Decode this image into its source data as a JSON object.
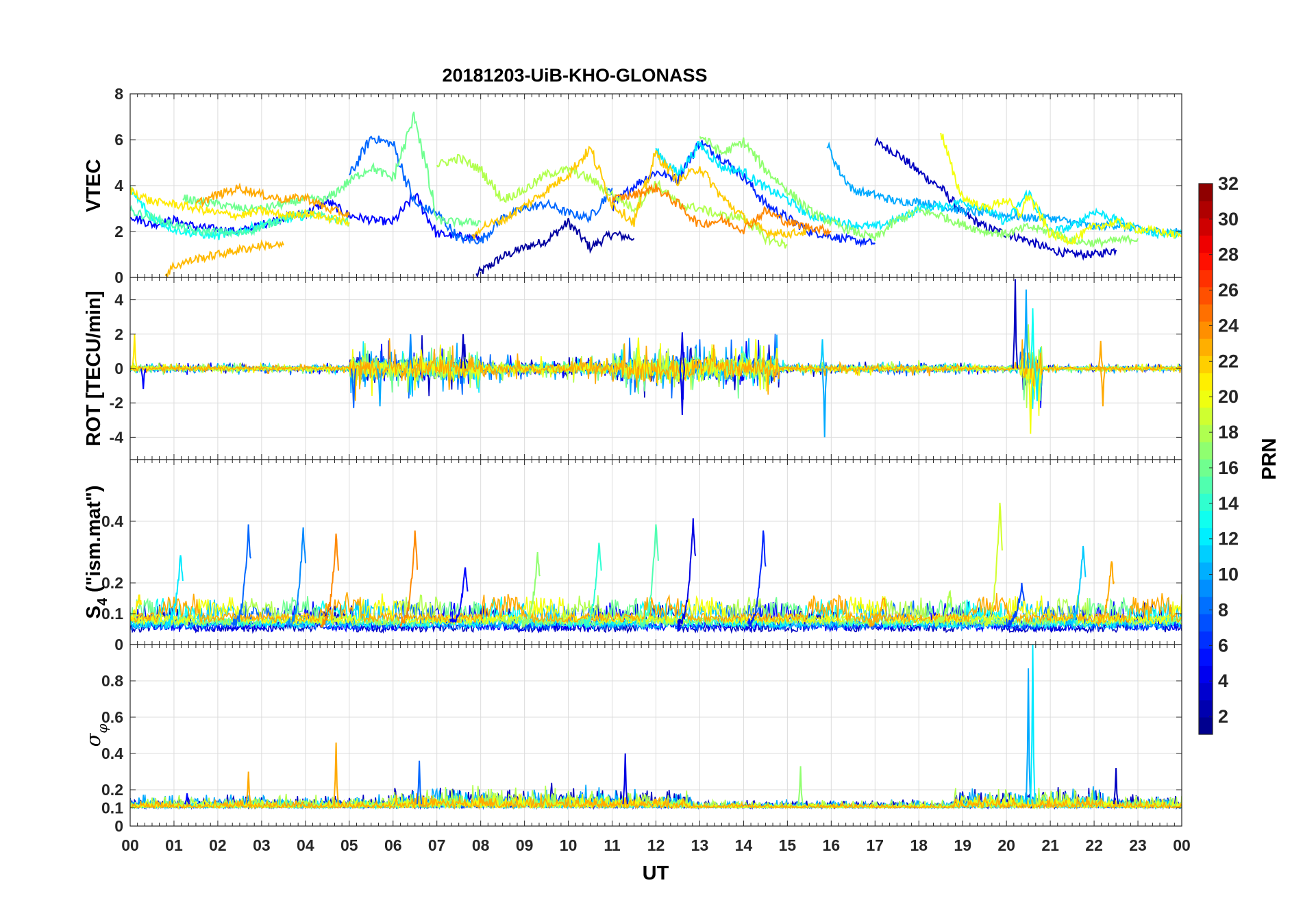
{
  "chart_data": {
    "type": "line",
    "title": "20181203-UiB-KHO-GLONASS",
    "xlabel": "UT",
    "x_tick_labels": [
      "00",
      "01",
      "02",
      "03",
      "04",
      "05",
      "06",
      "07",
      "08",
      "09",
      "10",
      "11",
      "12",
      "13",
      "14",
      "15",
      "16",
      "17",
      "18",
      "19",
      "20",
      "21",
      "22",
      "23",
      "00"
    ],
    "xlim": [
      0,
      24
    ],
    "grid": true,
    "colorbar": {
      "label": "PRN",
      "colormap": "jet",
      "range": [
        1,
        32
      ],
      "tick_labels": [
        "2",
        "4",
        "6",
        "8",
        "10",
        "12",
        "14",
        "16",
        "18",
        "20",
        "22",
        "24",
        "26",
        "28",
        "30",
        "32"
      ]
    },
    "panels": [
      {
        "name": "vtec",
        "ylabel": "VTEC",
        "ylim": [
          0,
          8
        ],
        "y_tick_labels": [
          "0",
          "2",
          "4",
          "6",
          "8"
        ],
        "series": [
          {
            "prn": 2,
            "x": [
              7.9,
              8.5,
              9.0,
              9.5,
              10.0,
              10.5,
              11.0,
              11.5
            ],
            "y": [
              0.1,
              0.9,
              1.3,
              1.6,
              2.4,
              1.3,
              1.9,
              1.7
            ]
          },
          {
            "prn": 3,
            "x": [
              17.0,
              17.5,
              18.0,
              18.5,
              19.0,
              19.5,
              20.0,
              20.5,
              21.0,
              21.5,
              22.0,
              22.5
            ],
            "y": [
              5.9,
              5.4,
              4.6,
              3.9,
              2.8,
              2.2,
              1.9,
              1.6,
              1.2,
              1.0,
              1.0,
              1.2
            ]
          },
          {
            "prn": 5,
            "x": [
              0.0,
              0.5,
              1.0,
              1.5,
              2.0,
              2.5,
              3.0,
              3.5,
              4.0,
              4.5,
              5.0,
              5.5,
              6.0,
              6.5,
              7.0,
              7.5,
              8.0
            ],
            "y": [
              2.7,
              2.3,
              2.5,
              2.2,
              2.1,
              2.0,
              2.3,
              2.6,
              2.8,
              3.3,
              2.7,
              2.5,
              2.4,
              3.6,
              1.9,
              1.8,
              1.7
            ]
          },
          {
            "prn": 6,
            "x": [
              11.0,
              11.5,
              12.0,
              12.5,
              13.0,
              13.5,
              14.0,
              14.5,
              15.0,
              15.5,
              16.0,
              16.5,
              17.0
            ],
            "y": [
              3.1,
              4.0,
              4.6,
              4.3,
              5.9,
              5.2,
              4.4,
              3.2,
              2.6,
              2.0,
              1.8,
              1.6,
              1.5
            ]
          },
          {
            "prn": 8,
            "x": [
              5.0,
              5.5,
              6.0,
              6.5,
              7.0,
              7.5,
              8.0,
              8.5,
              9.0,
              9.5,
              10.0,
              10.5,
              11.0
            ],
            "y": [
              4.4,
              6.1,
              5.8,
              3.2,
              2.8,
              1.7,
              1.6,
              2.6,
              3.0,
              3.2,
              2.8,
              2.6,
              3.9
            ]
          },
          {
            "prn": 10,
            "x": [
              15.9,
              16.2,
              16.5,
              17.0,
              17.5,
              18.0,
              18.5,
              19.0,
              19.5,
              20.0,
              20.5,
              21.0,
              21.5,
              22.0,
              22.5,
              23.0,
              23.5,
              24.0
            ],
            "y": [
              5.8,
              4.6,
              3.8,
              3.6,
              3.3,
              3.3,
              3.1,
              2.9,
              2.8,
              2.7,
              2.6,
              2.6,
              2.4,
              2.2,
              2.3,
              2.1,
              2.0,
              2.0
            ]
          },
          {
            "prn": 12,
            "x": [
              12.0,
              12.5,
              13.0,
              13.5,
              14.0,
              14.5,
              15.0,
              15.5,
              16.0,
              16.5,
              17.0,
              17.5,
              18.0,
              18.5,
              19.0,
              19.5,
              20.0,
              20.5,
              21.0,
              21.5,
              22.0,
              22.5,
              23.0,
              23.5,
              24.0
            ],
            "y": [
              5.5,
              4.5,
              5.8,
              4.8,
              4.6,
              3.9,
              3.4,
              2.7,
              2.5,
              2.3,
              2.2,
              2.5,
              3.0,
              3.1,
              3.3,
              3.0,
              2.4,
              3.7,
              2.0,
              2.2,
              2.9,
              2.5,
              2.1,
              1.9,
              1.9
            ]
          },
          {
            "prn": 13,
            "x": [
              0.0,
              0.5,
              1.0,
              1.5,
              2.0,
              2.5,
              3.0,
              3.5,
              4.0
            ],
            "y": [
              3.8,
              2.6,
              2.1,
              1.9,
              1.8,
              2.0,
              2.3,
              2.5,
              2.7
            ]
          },
          {
            "prn": 15,
            "x": [
              0.0,
              0.5,
              1.0,
              1.5,
              2.0,
              2.5,
              3.0,
              3.5,
              4.0,
              4.5,
              5.0
            ],
            "y": [
              2.9,
              2.6,
              2.3,
              2.0,
              2.0,
              1.9,
              2.2,
              2.6,
              2.8,
              2.6,
              2.4
            ]
          },
          {
            "prn": 16,
            "x": [
              1.2,
              1.5,
              2.0,
              2.5,
              3.0,
              3.5,
              4.0,
              4.5,
              5.0,
              5.5,
              6.0,
              6.5,
              7.0,
              7.5,
              8.0
            ],
            "y": [
              3.5,
              3.3,
              3.2,
              3.0,
              3.0,
              3.2,
              3.4,
              3.4,
              4.2,
              4.8,
              4.3,
              7.1,
              2.5,
              2.4,
              2.4
            ]
          },
          {
            "prn": 17,
            "x": [
              13.0,
              13.5,
              14.0,
              14.5,
              15.0,
              15.5,
              16.0,
              16.5,
              17.0,
              17.5,
              18.0,
              18.5,
              19.0,
              19.5,
              20.0,
              20.5,
              21.0,
              21.5,
              22.0,
              22.5,
              23.0
            ],
            "y": [
              6.2,
              5.4,
              5.9,
              4.7,
              3.8,
              2.9,
              2.4,
              2.0,
              1.7,
              2.5,
              2.9,
              2.7,
              2.3,
              2.0,
              1.9,
              2.2,
              2.0,
              1.6,
              1.5,
              1.6,
              1.7
            ]
          },
          {
            "prn": 18,
            "x": [
              7.0,
              7.5,
              8.0,
              8.5,
              9.0,
              9.5,
              10.0,
              10.5,
              11.0,
              11.5,
              12.0,
              12.5,
              13.0,
              13.5,
              14.0,
              14.5,
              15.0
            ],
            "y": [
              4.9,
              5.2,
              4.7,
              3.4,
              3.8,
              4.5,
              4.7,
              4.3,
              3.6,
              3.0,
              4.1,
              3.2,
              3.0,
              2.7,
              2.6,
              1.7,
              1.4
            ]
          },
          {
            "prn": 20,
            "x": [
              18.5,
              18.8,
              19.0,
              19.5,
              20.0,
              20.3,
              20.5,
              21.0,
              21.5,
              22.0,
              22.5,
              23.0,
              23.5,
              24.0
            ],
            "y": [
              6.4,
              4.4,
              3.5,
              3.0,
              3.4,
              2.7,
              3.6,
              1.9,
              1.6,
              2.2,
              2.4,
              2.1,
              2.0,
              1.8
            ]
          },
          {
            "prn": 21,
            "x": [
              0.0,
              0.5,
              1.0,
              1.5,
              2.0,
              2.5,
              3.0,
              3.5,
              4.0,
              4.5,
              5.0
            ],
            "y": [
              3.8,
              3.3,
              3.2,
              3.0,
              2.8,
              2.7,
              2.9,
              2.7,
              2.8,
              2.6,
              2.4
            ]
          },
          {
            "prn": 22,
            "x": [
              7.8,
              8.0,
              8.5,
              9.0,
              9.5,
              10.0,
              10.5,
              11.0,
              11.5,
              12.0,
              12.5,
              13.0,
              13.5,
              14.0,
              14.5,
              15.0,
              15.5
            ],
            "y": [
              1.6,
              2.2,
              2.5,
              3.1,
              3.8,
              4.5,
              5.6,
              3.2,
              2.4,
              5.4,
              4.2,
              4.8,
              3.5,
              2.6,
              2.0,
              1.9,
              2.0
            ]
          },
          {
            "prn": 23,
            "x": [
              1.5,
              2.0,
              2.5,
              3.0,
              3.5,
              4.0,
              4.5,
              5.0
            ],
            "y": [
              3.2,
              3.6,
              3.9,
              3.6,
              3.4,
              3.5,
              3.0,
              2.7
            ]
          },
          {
            "prn": 24,
            "x": [
              11.0,
              11.5,
              12.0,
              12.5,
              13.0,
              13.5,
              14.0,
              14.5,
              15.0,
              15.5,
              16.0
            ],
            "y": [
              3.4,
              3.6,
              3.9,
              3.2,
              2.3,
              2.5,
              2.1,
              2.9,
              2.4,
              2.2,
              2.0
            ]
          },
          {
            "prn": 22.5,
            "x": [
              0.8,
              1.0,
              1.5,
              2.0,
              2.5,
              3.0,
              3.5
            ],
            "y": [
              0.1,
              0.5,
              0.8,
              1.0,
              1.2,
              1.4,
              1.4
            ]
          }
        ]
      },
      {
        "name": "rot",
        "ylabel": "ROT [TECU/min]",
        "ylim": [
          -5.3,
          5.3
        ],
        "y_tick_labels": [
          "-4",
          "-2",
          "0",
          "2",
          "4"
        ],
        "noise": [
          {
            "from": 0,
            "to": 5,
            "amp": 0.15
          },
          {
            "from": 5,
            "to": 8,
            "amp": 0.75
          },
          {
            "from": 8,
            "to": 11,
            "amp": 0.35
          },
          {
            "from": 11,
            "to": 14.8,
            "amp": 0.8
          },
          {
            "from": 14.8,
            "to": 19,
            "amp": 0.2
          },
          {
            "from": 19,
            "to": 20.3,
            "amp": 0.15
          },
          {
            "from": 20.3,
            "to": 20.8,
            "amp": 1.2
          },
          {
            "from": 20.8,
            "to": 24,
            "amp": 0.12
          }
        ],
        "spikes": [
          {
            "x": 5.1,
            "y": -2.3,
            "prn": 8
          },
          {
            "x": 5.7,
            "y": -2.2,
            "prn": 10
          },
          {
            "x": 6.4,
            "y": 2.0,
            "prn": 9
          },
          {
            "x": 7.6,
            "y": 2.0,
            "prn": 3
          },
          {
            "x": 12.6,
            "y": -2.7,
            "prn": 4
          },
          {
            "x": 12.6,
            "y": 2.1,
            "prn": 4
          },
          {
            "x": 11.6,
            "y": 1.8,
            "prn": 20
          },
          {
            "x": 15.8,
            "y": 1.7,
            "prn": 11
          },
          {
            "x": 15.85,
            "y": -4.0,
            "prn": 10
          },
          {
            "x": 20.2,
            "y": 5.2,
            "prn": 3
          },
          {
            "x": 20.45,
            "y": 4.6,
            "prn": 10
          },
          {
            "x": 20.6,
            "y": 3.5,
            "prn": 13
          },
          {
            "x": 20.55,
            "y": -3.8,
            "prn": 20
          },
          {
            "x": 20.7,
            "y": -1.9,
            "prn": 12
          },
          {
            "x": 22.15,
            "y": 1.6,
            "prn": 23
          },
          {
            "x": 22.2,
            "y": -2.2,
            "prn": 23
          },
          {
            "x": 0.1,
            "y": 2.0,
            "prn": 21
          },
          {
            "x": 0.3,
            "y": -1.2,
            "prn": 5
          }
        ]
      },
      {
        "name": "s4",
        "ylabel": "S4 (\"ism.mat\")",
        "ylabel_main": "S",
        "ylabel_sub": "4",
        "ylabel_rest": " (\"ism.mat\")",
        "ylim": [
          0,
          0.6
        ],
        "y_tick_labels": [
          "0",
          "0.1",
          "0.2",
          "0.4"
        ],
        "baseline": 0.05,
        "peaks": [
          {
            "x": 1.15,
            "y": 0.29,
            "prn": 12
          },
          {
            "x": 2.7,
            "y": 0.39,
            "prn": 8
          },
          {
            "x": 3.95,
            "y": 0.38,
            "prn": 9
          },
          {
            "x": 4.7,
            "y": 0.36,
            "prn": 24
          },
          {
            "x": 6.5,
            "y": 0.37,
            "prn": 24
          },
          {
            "x": 9.3,
            "y": 0.3,
            "prn": 17
          },
          {
            "x": 10.7,
            "y": 0.33,
            "prn": 14
          },
          {
            "x": 12.0,
            "y": 0.39,
            "prn": 15
          },
          {
            "x": 12.85,
            "y": 0.41,
            "prn": 4
          },
          {
            "x": 14.45,
            "y": 0.37,
            "prn": 6
          },
          {
            "x": 19.85,
            "y": 0.46,
            "prn": 19
          },
          {
            "x": 20.35,
            "y": 0.2,
            "prn": 7
          },
          {
            "x": 21.75,
            "y": 0.32,
            "prn": 11
          },
          {
            "x": 22.4,
            "y": 0.27,
            "prn": 23
          },
          {
            "x": 0.2,
            "y": 0.16,
            "prn": 21
          },
          {
            "x": 7.65,
            "y": 0.25,
            "prn": 5
          },
          {
            "x": 17.2,
            "y": 0.15,
            "prn": 23
          },
          {
            "x": 18.7,
            "y": 0.17,
            "prn": 18
          }
        ]
      },
      {
        "name": "sigma_phi",
        "ylabel": "σφ",
        "ylabel_main": "σ",
        "ylabel_sub": "φ",
        "ylim": [
          0,
          1
        ],
        "y_tick_labels": [
          "0",
          "0.1",
          "0.2",
          "0.4",
          "0.6",
          "0.8"
        ],
        "baseline": 0.12,
        "noise": [
          {
            "from": 0,
            "to": 6,
            "amp": 0.05
          },
          {
            "from": 6,
            "to": 10.8,
            "amp": 0.09
          },
          {
            "from": 10.8,
            "to": 12.8,
            "amp": 0.07
          },
          {
            "from": 12.8,
            "to": 18.8,
            "amp": 0.03
          },
          {
            "from": 18.8,
            "to": 22.2,
            "amp": 0.08
          },
          {
            "from": 22.2,
            "to": 24,
            "amp": 0.05
          }
        ],
        "spikes": [
          {
            "x": 2.7,
            "y": 0.3,
            "prn": 23
          },
          {
            "x": 4.7,
            "y": 0.46,
            "prn": 23
          },
          {
            "x": 6.6,
            "y": 0.36,
            "prn": 8
          },
          {
            "x": 11.3,
            "y": 0.4,
            "prn": 4
          },
          {
            "x": 15.3,
            "y": 0.33,
            "prn": 17
          },
          {
            "x": 20.5,
            "y": 0.87,
            "prn": 10
          },
          {
            "x": 20.6,
            "y": 1.0,
            "prn": 12
          },
          {
            "x": 22.5,
            "y": 0.32,
            "prn": 3
          },
          {
            "x": 1.3,
            "y": 0.18,
            "prn": 5
          }
        ]
      }
    ]
  }
}
